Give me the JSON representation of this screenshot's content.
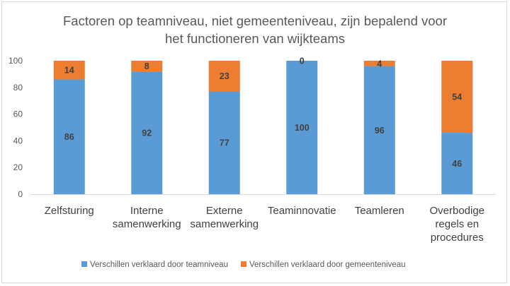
{
  "chart_data": {
    "type": "bar",
    "stacked": true,
    "title": "Factoren op teamniveau, niet gemeenteniveau, zijn bepalend voor het functioneren van wijkteams",
    "title_lines": [
      "Factoren op teamniveau, niet gemeenteniveau, zijn bepalend voor",
      "het functioneren van wijkteams"
    ],
    "categories": [
      "Zelfsturing",
      "Interne samenwerking",
      "Externe samenwerking",
      "Teaminnovatie",
      "Teamleren",
      "Overbodige regels en procedures"
    ],
    "category_lines": [
      [
        "Zelfsturing"
      ],
      [
        "Interne",
        "samenwerking"
      ],
      [
        "Externe",
        "samenwerking"
      ],
      [
        "Teaminnovatie"
      ],
      [
        "Teamleren"
      ],
      [
        "Overbodige",
        "regels en",
        "procedures"
      ]
    ],
    "series": [
      {
        "name": "Verschillen verklaard door teamniveau",
        "color": "#5b9bd5",
        "values": [
          86,
          92,
          77,
          100,
          96,
          46
        ]
      },
      {
        "name": "Verschillen verklaard door gemeenteniveau",
        "color": "#ed7d31",
        "values": [
          14,
          8,
          23,
          0,
          4,
          54
        ]
      }
    ],
    "ylim": [
      0,
      100
    ],
    "yticks": [
      "0",
      "20",
      "40",
      "60",
      "80",
      "100"
    ],
    "xlabel": "",
    "ylabel": "",
    "grid": false,
    "legend_position": "bottom"
  }
}
